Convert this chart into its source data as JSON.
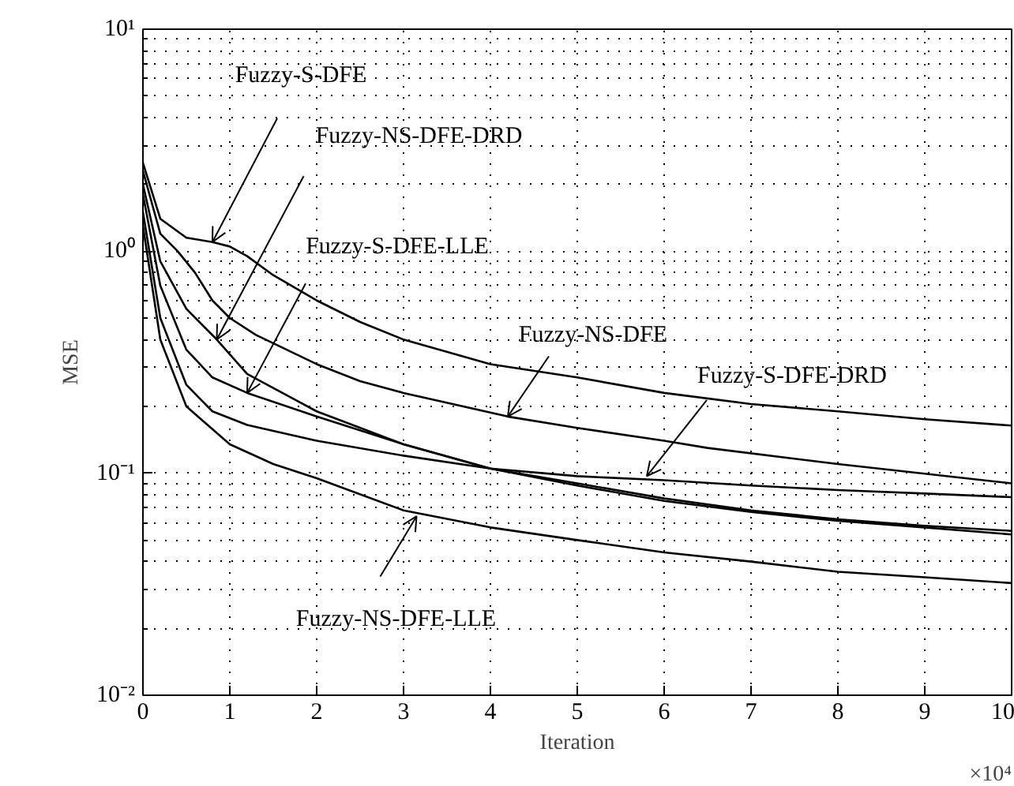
{
  "chart_data": {
    "type": "line",
    "xlabel": "Iteration",
    "ylabel": "MSE",
    "log": "y",
    "grid": true,
    "marker": "none",
    "line_style": "solid",
    "xlim": [
      0,
      10
    ],
    "xticks": [
      0,
      1,
      2,
      3,
      4,
      5,
      6,
      7,
      8,
      9,
      10
    ],
    "ylim": [
      0.01,
      10
    ],
    "yticks": [
      {
        "value": 0.01,
        "label": "10⁻²"
      },
      {
        "value": 0.1,
        "label": "10⁻¹"
      },
      {
        "value": 1,
        "label": "10⁰"
      },
      {
        "value": 10,
        "label": "10¹"
      }
    ],
    "series": [
      {
        "color": "#000000",
        "x": [
          0,
          0.2,
          0.5,
          0.8,
          1.0,
          1.2,
          1.5,
          2,
          2.5,
          3,
          4,
          5,
          6,
          7,
          8,
          9,
          10
        ],
        "values": [
          2.5,
          1.4,
          1.15,
          1.1,
          1.05,
          0.95,
          0.78,
          0.6,
          0.48,
          0.4,
          0.31,
          0.27,
          0.23,
          0.205,
          0.19,
          0.175,
          0.164
        ]
      },
      {
        "color": "#000000",
        "x": [
          0,
          0.2,
          0.4,
          0.6,
          0.8,
          1,
          1.3,
          2,
          2.5,
          3,
          4.2,
          5,
          6,
          6.5,
          8,
          10
        ],
        "values": [
          2.3,
          1.2,
          1.0,
          0.8,
          0.6,
          0.5,
          0.42,
          0.31,
          0.26,
          0.23,
          0.18,
          0.16,
          0.14,
          0.13,
          0.11,
          0.09
        ]
      },
      {
        "color": "#000000",
        "x": [
          0,
          0.2,
          0.5,
          0.85,
          1.2,
          2,
          3,
          4,
          5,
          6,
          7,
          8,
          9,
          10
        ],
        "values": [
          2.0,
          0.9,
          0.55,
          0.4,
          0.28,
          0.19,
          0.135,
          0.105,
          0.088,
          0.075,
          0.067,
          0.061,
          0.057,
          0.053
        ]
      },
      {
        "color": "#000000",
        "x": [
          0,
          0.2,
          0.5,
          0.8,
          1.2,
          2,
          3,
          4,
          5,
          6,
          7,
          8,
          9,
          10
        ],
        "values": [
          1.8,
          0.7,
          0.36,
          0.27,
          0.23,
          0.18,
          0.135,
          0.105,
          0.09,
          0.077,
          0.068,
          0.062,
          0.058,
          0.055
        ]
      },
      {
        "color": "#000000",
        "x": [
          0,
          0.2,
          0.5,
          0.8,
          1.2,
          2,
          3,
          4,
          5,
          6,
          7,
          8,
          9,
          10
        ],
        "values": [
          1.5,
          0.5,
          0.25,
          0.19,
          0.165,
          0.14,
          0.12,
          0.105,
          0.097,
          0.093,
          0.088,
          0.084,
          0.081,
          0.078
        ]
      },
      {
        "color": "#000000",
        "x": [
          0,
          0.2,
          0.5,
          1,
          1.5,
          2,
          3,
          4,
          5,
          6,
          7,
          8,
          9,
          10
        ],
        "values": [
          1.3,
          0.4,
          0.2,
          0.135,
          0.11,
          0.095,
          0.068,
          0.057,
          0.05,
          0.044,
          0.04,
          0.036,
          0.034,
          0.032
        ]
      }
    ],
    "annotations": [
      {
        "text": "Fuzzy-S-DFE",
        "x": 0.8,
        "y": 1.1
      },
      {
        "text": "Fuzzy-NS-DFE-DRD",
        "x": 0.85,
        "y": 0.4
      },
      {
        "text": "Fuzzy-S-DFE-LLE",
        "x": 1.2,
        "y": 0.23
      },
      {
        "text": "Fuzzy-NS-DFE",
        "x": 4.2,
        "y": 0.18
      },
      {
        "text": "Fuzzy-S-DFE-DRD",
        "x": 5.8,
        "y": 0.097
      },
      {
        "text": "Fuzzy-NS-DFE-LLE",
        "x": 3.15,
        "y": 0.064
      },
      "×10⁴"
    ]
  }
}
